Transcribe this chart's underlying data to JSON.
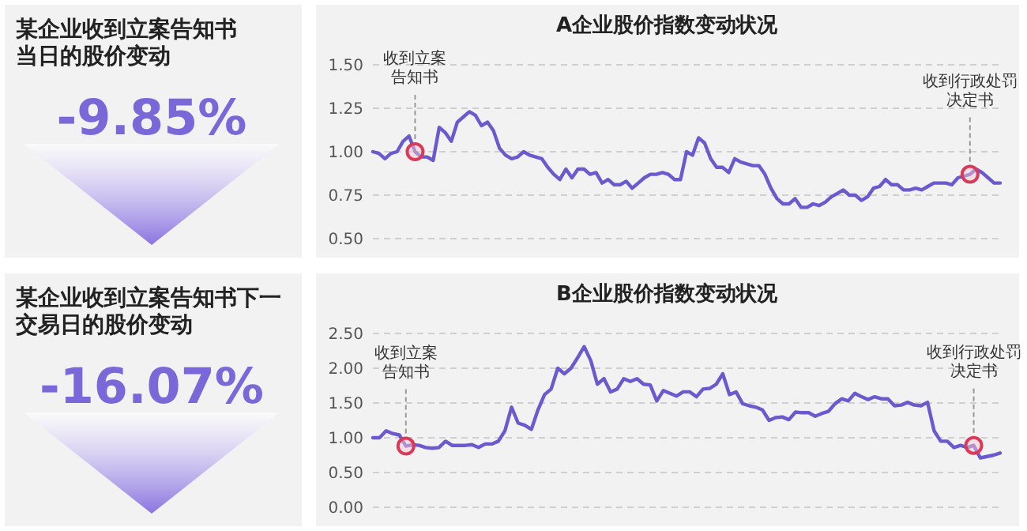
{
  "chart_data": [
    {
      "type": "other",
      "title": "某企业收到立案告知书当日的股价变动",
      "annotations": [
        "-9.85%"
      ]
    },
    {
      "type": "line",
      "title": "A企业股价指数变动状况",
      "categories": [
        null,
        null,
        null,
        null,
        null,
        null,
        null,
        null,
        null,
        null,
        null,
        null,
        null,
        null,
        null,
        null,
        null,
        null,
        null,
        null,
        null,
        null,
        null,
        null,
        null,
        null,
        null,
        null,
        null,
        null,
        null,
        null,
        null,
        null,
        null,
        null,
        null,
        null,
        null,
        null,
        null,
        null,
        null,
        null,
        null,
        null,
        null,
        null,
        null,
        null,
        null,
        null,
        null,
        null,
        null,
        null,
        null,
        null,
        null,
        null,
        null,
        null,
        null,
        null,
        null,
        null,
        null,
        null,
        null,
        null,
        null,
        null,
        null,
        null,
        null,
        null,
        null,
        null,
        null,
        null,
        null,
        null,
        null,
        null,
        null,
        null,
        null,
        null,
        null,
        null,
        null,
        null,
        null,
        null,
        null,
        null,
        null,
        null,
        null,
        null,
        null,
        null,
        null,
        null,
        null
      ],
      "ylim": [
        0.5,
        1.5
      ],
      "yticks": [
        {
          "value": 0.5,
          "label": "0.50"
        },
        {
          "value": 0.75,
          "label": "0.75"
        },
        {
          "value": 1.0,
          "label": "1.00"
        },
        {
          "value": 1.25,
          "label": "1.25"
        },
        {
          "value": 1.5,
          "label": "1.50"
        }
      ],
      "grid": "y",
      "tick_labels": "y",
      "series": [
        {
          "color": "#6a5acd",
          "values": [
            1.0,
            0.99,
            0.96,
            0.99,
            1.0,
            1.06,
            1.09,
            1.0,
            0.97,
            0.97,
            0.95,
            1.14,
            1.11,
            1.06,
            1.17,
            1.2,
            1.23,
            1.21,
            1.15,
            1.17,
            1.12,
            1.02,
            0.98,
            0.96,
            0.97,
            1.0,
            0.98,
            0.97,
            0.96,
            0.91,
            0.87,
            0.84,
            0.9,
            0.85,
            0.9,
            0.9,
            0.87,
            0.88,
            0.82,
            0.84,
            0.81,
            0.81,
            0.83,
            0.79,
            0.82,
            0.85,
            0.87,
            0.87,
            0.88,
            0.87,
            0.84,
            0.84,
            1.0,
            0.98,
            1.08,
            1.05,
            0.96,
            0.91,
            0.91,
            0.88,
            0.96,
            0.94,
            0.93,
            0.92,
            0.92,
            0.87,
            0.79,
            0.73,
            0.7,
            0.7,
            0.73,
            0.68,
            0.68,
            0.7,
            0.69,
            0.71,
            0.74,
            0.76,
            0.78,
            0.75,
            0.75,
            0.72,
            0.74,
            0.79,
            0.8,
            0.84,
            0.81,
            0.81,
            0.78,
            0.78,
            0.79,
            0.78,
            0.8,
            0.82,
            0.82,
            0.82,
            0.81,
            0.85,
            0.86,
            0.87,
            0.9,
            0.88,
            0.85,
            0.82,
            0.82
          ]
        },
        {
          "type": "scatter",
          "marker": "circle",
          "color": "#d93a5a",
          "values": [
            null,
            null,
            null,
            null,
            null,
            null,
            null,
            1.0,
            null,
            null,
            null,
            null,
            null,
            null,
            null,
            null,
            null,
            null,
            null,
            null,
            null,
            null,
            null,
            null,
            null,
            null,
            null,
            null,
            null,
            null,
            null,
            null,
            null,
            null,
            null,
            null,
            null,
            null,
            null,
            null,
            null,
            null,
            null,
            null,
            null,
            null,
            null,
            null,
            null,
            null,
            null,
            null,
            null,
            null,
            null,
            null,
            null,
            null,
            null,
            null,
            null,
            null,
            null,
            null,
            null,
            null,
            null,
            null,
            null,
            null,
            null,
            null,
            null,
            null,
            null,
            null,
            null,
            null,
            null,
            null,
            null,
            null,
            null,
            null,
            null,
            null,
            null,
            null,
            null,
            null,
            null,
            null,
            null,
            null,
            null,
            null,
            null,
            null,
            null,
            0.87,
            null,
            null,
            null,
            null,
            null
          ]
        }
      ],
      "annotations": [
        {
          "text": "收到立案告知书",
          "y": 1.0
        },
        {
          "text": "收到行政处罚决定书",
          "y": 0.87
        }
      ]
    },
    {
      "type": "other",
      "title": "某企业收到立案告知书下一交易日的股价变动",
      "annotations": [
        "-16.07%"
      ]
    },
    {
      "type": "line",
      "title": "B企业股价指数变动状况",
      "categories": [
        null,
        null,
        null,
        null,
        null,
        null,
        null,
        null,
        null,
        null,
        null,
        null,
        null,
        null,
        null,
        null,
        null,
        null,
        null,
        null,
        null,
        null,
        null,
        null,
        null,
        null,
        null,
        null,
        null,
        null,
        null,
        null,
        null,
        null,
        null,
        null,
        null,
        null,
        null,
        null,
        null,
        null,
        null,
        null,
        null,
        null,
        null,
        null,
        null,
        null,
        null,
        null,
        null,
        null,
        null,
        null,
        null,
        null,
        null,
        null,
        null,
        null,
        null,
        null,
        null,
        null,
        null,
        null,
        null,
        null,
        null,
        null,
        null,
        null,
        null,
        null,
        null,
        null,
        null,
        null,
        null,
        null,
        null,
        null,
        null,
        null,
        null,
        null,
        null,
        null,
        null,
        null,
        null,
        null,
        null,
        null
      ],
      "ylim": [
        0,
        2.5
      ],
      "yticks": [
        {
          "value": 0,
          "label": "0.00"
        },
        {
          "value": 0.5,
          "label": "0.50"
        },
        {
          "value": 1.0,
          "label": "1.00"
        },
        {
          "value": 1.5,
          "label": "1.50"
        },
        {
          "value": 2.0,
          "label": "2.00"
        },
        {
          "value": 2.5,
          "label": "2.50"
        }
      ],
      "grid": "y",
      "tick_labels": "y",
      "series": [
        {
          "color": "#6a5acd",
          "values": [
            1.0,
            1.0,
            1.1,
            1.06,
            1.04,
            0.88,
            0.9,
            0.89,
            0.86,
            0.85,
            0.86,
            0.95,
            0.89,
            0.89,
            0.89,
            0.9,
            0.86,
            0.91,
            0.91,
            0.95,
            1.1,
            1.44,
            1.21,
            1.18,
            1.12,
            1.4,
            1.62,
            1.7,
            2.0,
            1.92,
            2.0,
            2.15,
            2.31,
            2.11,
            1.77,
            1.85,
            1.66,
            1.7,
            1.85,
            1.81,
            1.85,
            1.77,
            1.76,
            1.53,
            1.68,
            1.64,
            1.6,
            1.66,
            1.66,
            1.59,
            1.7,
            1.71,
            1.77,
            1.92,
            1.62,
            1.66,
            1.49,
            1.46,
            1.44,
            1.4,
            1.25,
            1.29,
            1.3,
            1.26,
            1.37,
            1.36,
            1.36,
            1.31,
            1.35,
            1.38,
            1.49,
            1.56,
            1.53,
            1.64,
            1.59,
            1.55,
            1.59,
            1.56,
            1.56,
            1.46,
            1.47,
            1.51,
            1.47,
            1.46,
            1.51,
            1.1,
            0.95,
            0.95,
            0.86,
            0.89,
            0.86,
            0.89,
            0.71,
            0.73,
            0.75,
            0.78
          ]
        },
        {
          "type": "scatter",
          "marker": "circle",
          "color": "#d93a5a",
          "values": [
            null,
            null,
            null,
            null,
            null,
            0.88,
            null,
            null,
            null,
            null,
            null,
            null,
            null,
            null,
            null,
            null,
            null,
            null,
            null,
            null,
            null,
            null,
            null,
            null,
            null,
            null,
            null,
            null,
            null,
            null,
            null,
            null,
            null,
            null,
            null,
            null,
            null,
            null,
            null,
            null,
            null,
            null,
            null,
            null,
            null,
            null,
            null,
            null,
            null,
            null,
            null,
            null,
            null,
            null,
            null,
            null,
            null,
            null,
            null,
            null,
            null,
            null,
            null,
            null,
            null,
            null,
            null,
            null,
            null,
            null,
            null,
            null,
            null,
            null,
            null,
            null,
            null,
            null,
            null,
            null,
            null,
            null,
            null,
            null,
            null,
            null,
            null,
            null,
            null,
            null,
            null,
            0.89,
            null,
            null,
            null,
            null
          ]
        }
      ],
      "annotations": [
        {
          "text": "收到立案告知书",
          "y": 0.88
        },
        {
          "text": "收到行政处罚决定书",
          "y": 0.89
        }
      ]
    }
  ]
}
